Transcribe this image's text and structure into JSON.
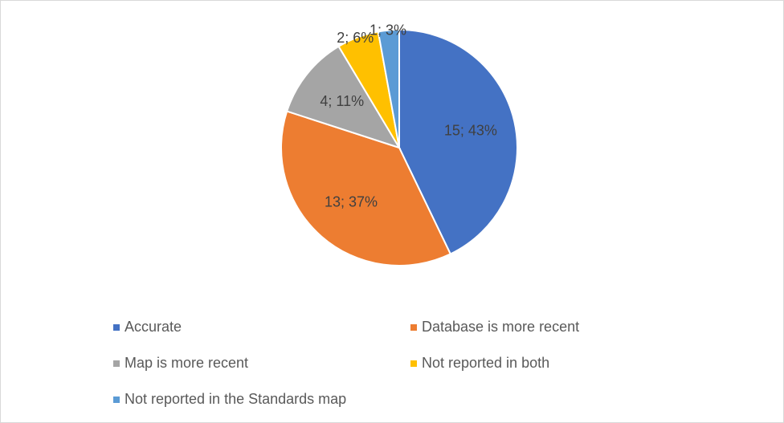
{
  "chart_data": {
    "type": "pie",
    "categories": [
      "Accurate",
      "Database is more recent",
      "Map is more recent",
      "Not reported in both",
      "Not reported in the Standards map"
    ],
    "values": [
      15,
      13,
      4,
      2,
      1
    ],
    "value_labels": [
      "15; 43%",
      "13; 37%",
      "4; 11%",
      "2; 6%",
      "1; 3%"
    ],
    "colors": [
      "#4472c4",
      "#ed7d31",
      "#a5a5a5",
      "#ffc000",
      "#5b9bd5"
    ],
    "legend": "bottom"
  }
}
